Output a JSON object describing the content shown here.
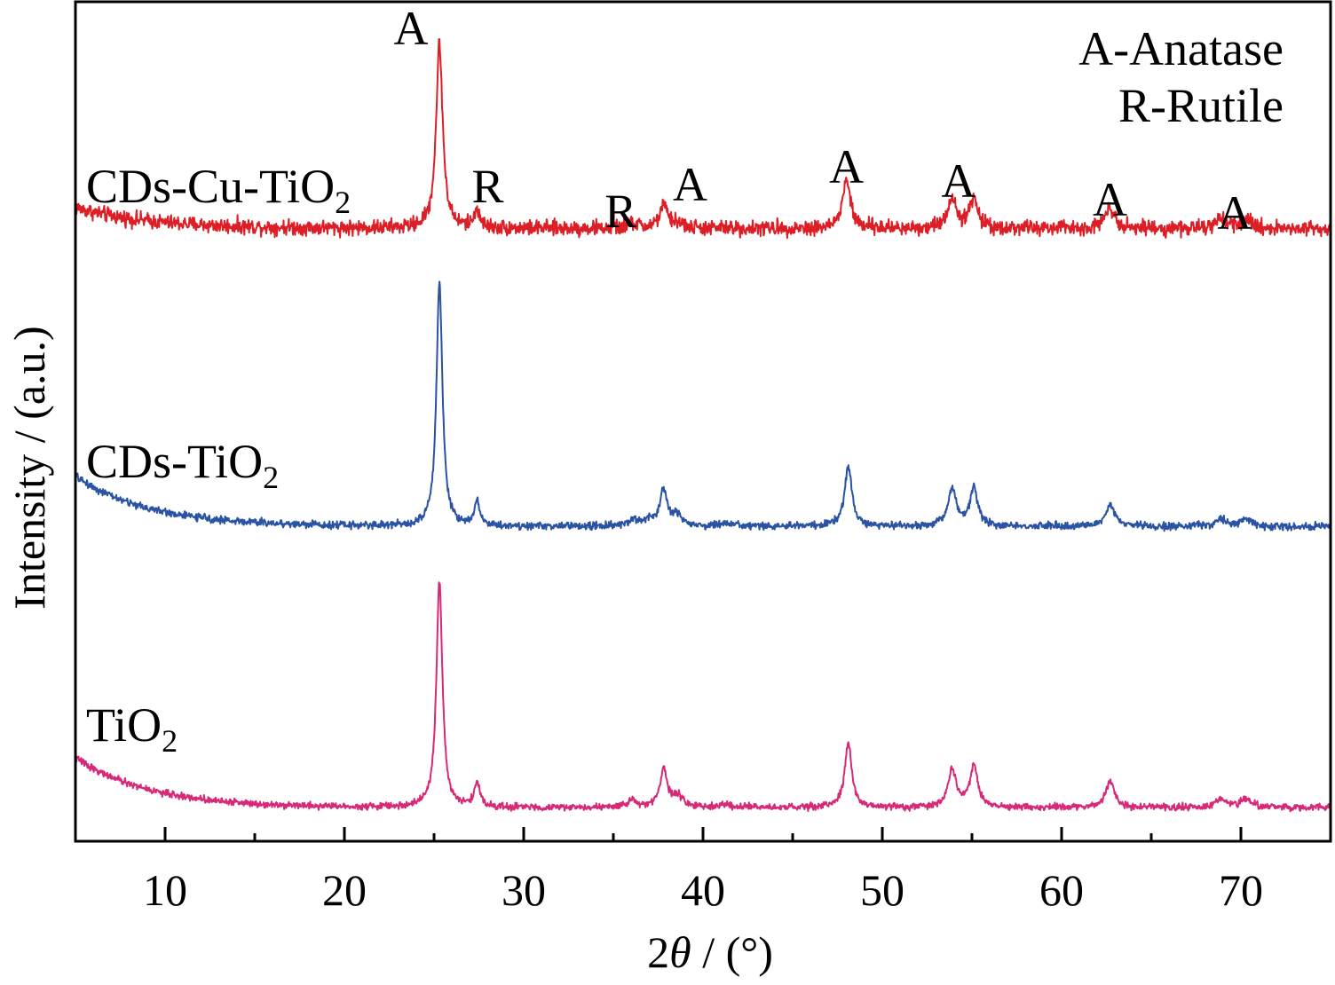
{
  "chart_data": {
    "type": "line",
    "xlabel": "2θ / (°)",
    "ylabel": "Intensity / (a.u.)",
    "xlim": [
      5,
      75
    ],
    "ylim": [
      0,
      100
    ],
    "x_ticks": [
      10,
      20,
      30,
      40,
      50,
      60,
      70
    ],
    "x_minor_ticks": [
      15,
      25,
      35,
      45,
      55,
      65
    ],
    "grid": false,
    "yaxis_numeric_labels": false,
    "legend_text": [
      "A-Anatase",
      "R-Rutile"
    ],
    "series": [
      {
        "name": "CDs-Cu-TiO₂",
        "color": "#dc1f26",
        "baseline": 73,
        "offset_decay": {
          "amplitude": 2.5,
          "rate": 0.25
        },
        "noise": 0.9,
        "peaks": [
          {
            "x": 25.3,
            "height": 22.0,
            "width": 0.22
          },
          {
            "x": 27.4,
            "height": 2.2,
            "width": 0.18
          },
          {
            "x": 36.1,
            "height": 0.6,
            "width": 0.3
          },
          {
            "x": 37.8,
            "height": 2.6,
            "width": 0.28
          },
          {
            "x": 38.6,
            "height": 0.6,
            "width": 0.3
          },
          {
            "x": 48.0,
            "height": 5.8,
            "width": 0.26
          },
          {
            "x": 53.9,
            "height": 3.6,
            "width": 0.3
          },
          {
            "x": 55.1,
            "height": 3.4,
            "width": 0.28
          },
          {
            "x": 62.7,
            "height": 2.5,
            "width": 0.34
          },
          {
            "x": 68.9,
            "height": 0.9,
            "width": 0.35
          },
          {
            "x": 70.3,
            "height": 1.0,
            "width": 0.35
          }
        ]
      },
      {
        "name": "CDs-TiO₂",
        "color": "#2b53a3",
        "baseline": 37.5,
        "offset_decay": {
          "amplitude": 6.0,
          "rate": 0.25
        },
        "noise": 0.45,
        "peaks": [
          {
            "x": 25.3,
            "height": 29.0,
            "width": 0.2
          },
          {
            "x": 27.4,
            "height": 3.0,
            "width": 0.18
          },
          {
            "x": 36.1,
            "height": 0.9,
            "width": 0.25
          },
          {
            "x": 37.0,
            "height": 0.7,
            "width": 0.25
          },
          {
            "x": 37.8,
            "height": 4.4,
            "width": 0.26
          },
          {
            "x": 38.6,
            "height": 1.2,
            "width": 0.28
          },
          {
            "x": 41.2,
            "height": 0.4,
            "width": 0.3
          },
          {
            "x": 48.1,
            "height": 7.2,
            "width": 0.24
          },
          {
            "x": 53.9,
            "height": 4.4,
            "width": 0.28
          },
          {
            "x": 55.1,
            "height": 4.6,
            "width": 0.26
          },
          {
            "x": 62.7,
            "height": 2.7,
            "width": 0.3
          },
          {
            "x": 68.9,
            "height": 0.9,
            "width": 0.35
          },
          {
            "x": 70.3,
            "height": 0.8,
            "width": 0.35
          }
        ]
      },
      {
        "name": "TiO₂",
        "color": "#d62a79",
        "baseline": 4,
        "offset_decay": {
          "amplitude": 6.0,
          "rate": 0.25
        },
        "noise": 0.4,
        "peaks": [
          {
            "x": 25.3,
            "height": 27.0,
            "width": 0.2
          },
          {
            "x": 27.4,
            "height": 3.0,
            "width": 0.18
          },
          {
            "x": 36.1,
            "height": 1.0,
            "width": 0.25
          },
          {
            "x": 37.8,
            "height": 4.5,
            "width": 0.26
          },
          {
            "x": 38.6,
            "height": 1.3,
            "width": 0.28
          },
          {
            "x": 41.2,
            "height": 0.4,
            "width": 0.3
          },
          {
            "x": 48.1,
            "height": 7.6,
            "width": 0.24
          },
          {
            "x": 53.9,
            "height": 4.5,
            "width": 0.28
          },
          {
            "x": 55.1,
            "height": 4.9,
            "width": 0.26
          },
          {
            "x": 62.7,
            "height": 3.1,
            "width": 0.3
          },
          {
            "x": 68.9,
            "height": 1.1,
            "width": 0.35
          },
          {
            "x": 70.3,
            "height": 1.0,
            "width": 0.35
          }
        ]
      }
    ],
    "annotations": [
      {
        "text": "A",
        "x": 25.3,
        "phase": "Anatase"
      },
      {
        "text": "R",
        "x": 27.4,
        "phase": "Rutile"
      },
      {
        "text": "R",
        "x": 36.1,
        "phase": "Rutile"
      },
      {
        "text": "A",
        "x": 37.8,
        "phase": "Anatase"
      },
      {
        "text": "A",
        "x": 48.0,
        "phase": "Anatase"
      },
      {
        "text": "A",
        "x": 54.5,
        "phase": "Anatase"
      },
      {
        "text": "A",
        "x": 62.7,
        "phase": "Anatase"
      },
      {
        "text": "A",
        "x": 69.6,
        "phase": "Anatase"
      }
    ]
  }
}
